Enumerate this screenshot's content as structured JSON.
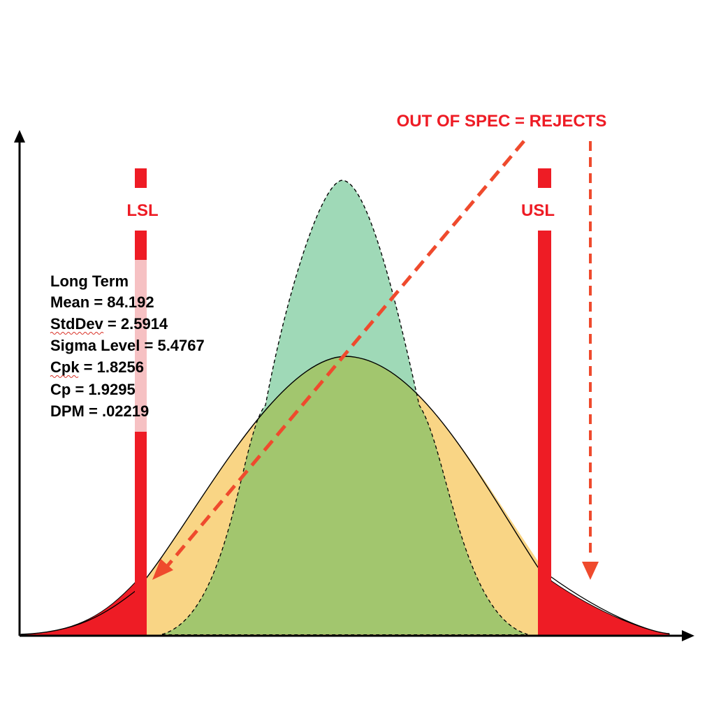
{
  "annotation": {
    "title": "OUT OF SPEC = REJECTS"
  },
  "spec_limits": {
    "lower_label": "LSL",
    "upper_label": "USL"
  },
  "stats": {
    "heading": "Long Term",
    "lines": [
      "Mean = 84.192",
      "StdDev = 2.5914",
      "Sigma Level = 5.4767",
      "Cpk = 1.8256",
      "Cp = 1.9295",
      "DPM = .02219"
    ]
  },
  "colors": {
    "reject": "#ee1c25",
    "long_term_fill": "#f9d585",
    "short_term_fill": "#9fd9b7",
    "overlap_fill": "#a2c66e",
    "arrow": "#ef4a2d",
    "axis": "#000000"
  }
}
